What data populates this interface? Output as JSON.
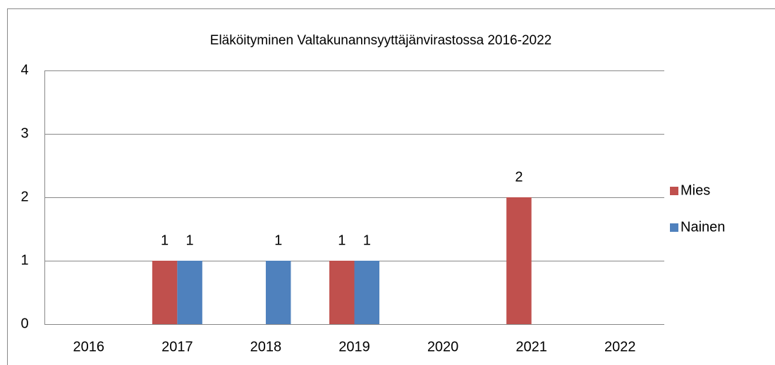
{
  "chart_data": {
    "type": "bar",
    "title": "Eläköityminen Valtakunannsyyttäjänvirastossa 2016-2022",
    "categories": [
      "2016",
      "2017",
      "2018",
      "2019",
      "2020",
      "2021",
      "2022"
    ],
    "series": [
      {
        "name": "Mies",
        "color": "#c0504d",
        "values": [
          null,
          1,
          null,
          1,
          null,
          2,
          null
        ]
      },
      {
        "name": "Nainen",
        "color": "#4f81bd",
        "values": [
          null,
          1,
          1,
          1,
          null,
          null,
          null
        ]
      }
    ],
    "ylim": [
      0,
      4
    ],
    "yticks": [
      0,
      1,
      2,
      3,
      4
    ],
    "grid": true,
    "legend": "right"
  }
}
